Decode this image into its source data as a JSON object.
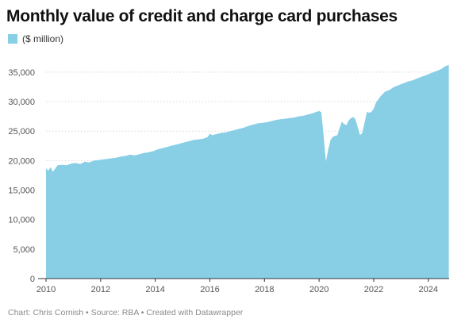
{
  "title": "Monthly value of credit and charge card purchases",
  "footer": {
    "credit": "Chart: Chris Cornish",
    "source": "Source: RBA",
    "tool": "Created with Datawrapper",
    "separator": "•"
  },
  "colors": {
    "area": "#88cfe6",
    "grid": "#d8d8d8",
    "axis": "#333333",
    "tick_label": "#555555"
  },
  "chart_data": {
    "type": "area",
    "title": "Monthly value of credit and charge card purchases",
    "legend": [
      {
        "label": "($ million)",
        "color": "#88cfe6"
      }
    ],
    "legend_position": "top-left",
    "grid": true,
    "xlim": [
      2010,
      2024.75
    ],
    "ylim": [
      0,
      37000
    ],
    "x_ticks": [
      2010,
      2012,
      2014,
      2016,
      2018,
      2020,
      2022,
      2024
    ],
    "y_ticks": [
      0,
      5000,
      10000,
      15000,
      20000,
      25000,
      30000,
      35000
    ],
    "y_tick_labels": [
      "0",
      "5,000",
      "10,000",
      "15,000",
      "20,000",
      "25,000",
      "30,000",
      "35,000"
    ],
    "series": [
      {
        "name": "($ million)",
        "points": [
          [
            2010.0,
            18700
          ],
          [
            2010.08,
            18300
          ],
          [
            2010.17,
            18900
          ],
          [
            2010.25,
            18100
          ],
          [
            2010.42,
            19200
          ],
          [
            2010.58,
            19300
          ],
          [
            2010.75,
            19200
          ],
          [
            2010.92,
            19500
          ],
          [
            2011.08,
            19600
          ],
          [
            2011.25,
            19400
          ],
          [
            2011.42,
            19800
          ],
          [
            2011.58,
            19700
          ],
          [
            2011.75,
            20000
          ],
          [
            2011.92,
            20100
          ],
          [
            2012.08,
            20200
          ],
          [
            2012.25,
            20300
          ],
          [
            2012.42,
            20400
          ],
          [
            2012.58,
            20500
          ],
          [
            2012.75,
            20700
          ],
          [
            2012.92,
            20800
          ],
          [
            2013.08,
            21000
          ],
          [
            2013.25,
            20900
          ],
          [
            2013.42,
            21100
          ],
          [
            2013.58,
            21300
          ],
          [
            2013.75,
            21400
          ],
          [
            2013.92,
            21600
          ],
          [
            2014.08,
            21900
          ],
          [
            2014.25,
            22100
          ],
          [
            2014.42,
            22300
          ],
          [
            2014.58,
            22500
          ],
          [
            2014.75,
            22700
          ],
          [
            2014.92,
            22900
          ],
          [
            2015.08,
            23100
          ],
          [
            2015.25,
            23300
          ],
          [
            2015.42,
            23500
          ],
          [
            2015.58,
            23600
          ],
          [
            2015.75,
            23700
          ],
          [
            2015.92,
            24000
          ],
          [
            2016.0,
            24600
          ],
          [
            2016.08,
            24300
          ],
          [
            2016.25,
            24500
          ],
          [
            2016.42,
            24700
          ],
          [
            2016.58,
            24800
          ],
          [
            2016.75,
            25000
          ],
          [
            2016.92,
            25200
          ],
          [
            2017.08,
            25400
          ],
          [
            2017.25,
            25600
          ],
          [
            2017.42,
            25900
          ],
          [
            2017.58,
            26100
          ],
          [
            2017.75,
            26300
          ],
          [
            2017.92,
            26400
          ],
          [
            2018.08,
            26500
          ],
          [
            2018.25,
            26700
          ],
          [
            2018.42,
            26900
          ],
          [
            2018.58,
            27000
          ],
          [
            2018.75,
            27100
          ],
          [
            2018.92,
            27200
          ],
          [
            2019.08,
            27300
          ],
          [
            2019.25,
            27500
          ],
          [
            2019.42,
            27600
          ],
          [
            2019.58,
            27800
          ],
          [
            2019.75,
            28000
          ],
          [
            2019.92,
            28300
          ],
          [
            2020.0,
            28400
          ],
          [
            2020.08,
            28200
          ],
          [
            2020.17,
            24000
          ],
          [
            2020.25,
            19800
          ],
          [
            2020.33,
            21800
          ],
          [
            2020.42,
            23500
          ],
          [
            2020.5,
            24000
          ],
          [
            2020.58,
            24200
          ],
          [
            2020.67,
            24300
          ],
          [
            2020.75,
            25500
          ],
          [
            2020.83,
            26600
          ],
          [
            2020.92,
            26200
          ],
          [
            2021.0,
            26000
          ],
          [
            2021.08,
            26800
          ],
          [
            2021.17,
            27200
          ],
          [
            2021.25,
            27400
          ],
          [
            2021.33,
            27000
          ],
          [
            2021.42,
            25600
          ],
          [
            2021.5,
            24300
          ],
          [
            2021.58,
            24700
          ],
          [
            2021.67,
            26500
          ],
          [
            2021.75,
            28300
          ],
          [
            2021.83,
            28100
          ],
          [
            2021.92,
            28300
          ],
          [
            2022.0,
            28800
          ],
          [
            2022.08,
            29800
          ],
          [
            2022.17,
            30400
          ],
          [
            2022.25,
            30900
          ],
          [
            2022.42,
            31700
          ],
          [
            2022.58,
            32000
          ],
          [
            2022.75,
            32500
          ],
          [
            2022.92,
            32800
          ],
          [
            2023.08,
            33100
          ],
          [
            2023.25,
            33400
          ],
          [
            2023.42,
            33600
          ],
          [
            2023.58,
            33900
          ],
          [
            2023.75,
            34200
          ],
          [
            2023.92,
            34500
          ],
          [
            2024.08,
            34800
          ],
          [
            2024.25,
            35100
          ],
          [
            2024.42,
            35400
          ],
          [
            2024.5,
            35600
          ],
          [
            2024.58,
            35900
          ],
          [
            2024.67,
            36100
          ],
          [
            2024.75,
            36200
          ]
        ]
      }
    ]
  }
}
